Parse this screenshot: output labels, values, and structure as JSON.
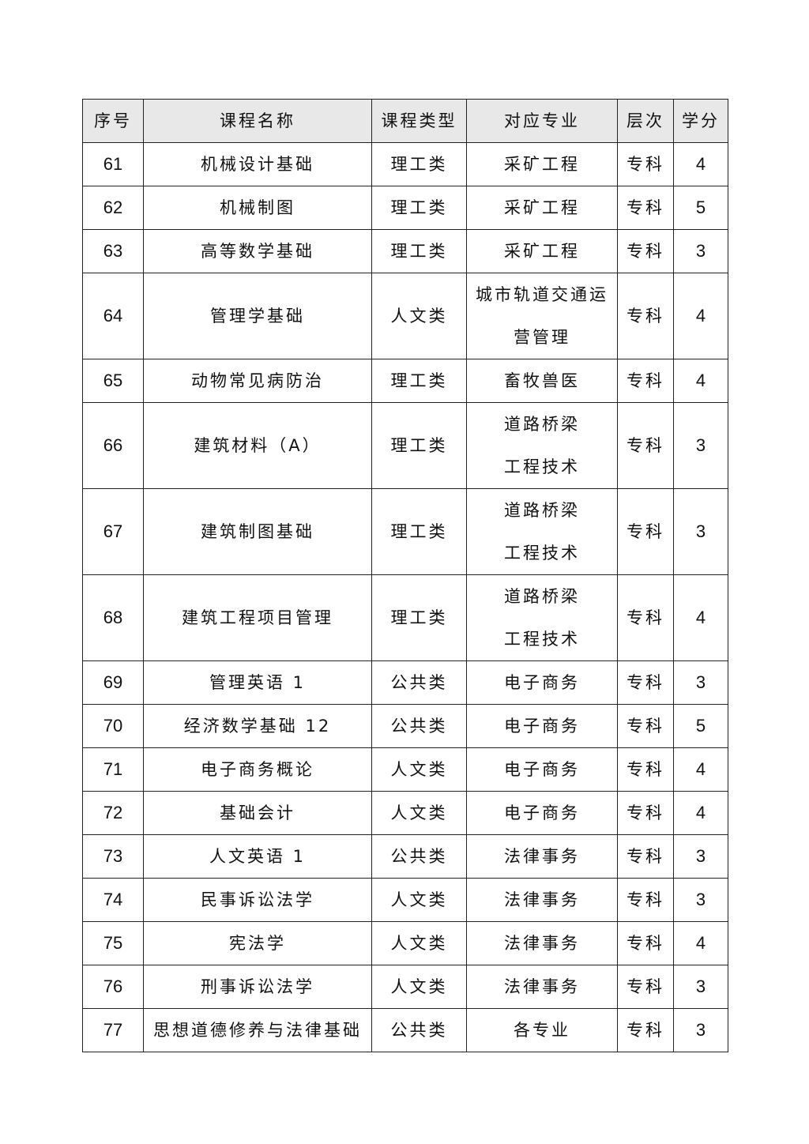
{
  "headers": [
    "序号",
    "课程名称",
    "课程类型",
    "对应专业",
    "层次",
    "学分"
  ],
  "rows": [
    {
      "no": "61",
      "name": "机械设计基础",
      "type": "理工类",
      "major": [
        "采矿工程"
      ],
      "level": "专科",
      "credit": "4"
    },
    {
      "no": "62",
      "name": "机械制图",
      "type": "理工类",
      "major": [
        "采矿工程"
      ],
      "level": "专科",
      "credit": "5"
    },
    {
      "no": "63",
      "name": "高等数学基础",
      "type": "理工类",
      "major": [
        "采矿工程"
      ],
      "level": "专科",
      "credit": "3"
    },
    {
      "no": "64",
      "name": "管理学基础",
      "type": "人文类",
      "major": [
        "城市轨道交通运",
        "营管理"
      ],
      "level": "专科",
      "credit": "4"
    },
    {
      "no": "65",
      "name": "动物常见病防治",
      "type": "理工类",
      "major": [
        "畜牧兽医"
      ],
      "level": "专科",
      "credit": "4"
    },
    {
      "no": "66",
      "name": "建筑材料（A）",
      "type": "理工类",
      "major": [
        "道路桥梁",
        "工程技术"
      ],
      "level": "专科",
      "credit": "3"
    },
    {
      "no": "67",
      "name": "建筑制图基础",
      "type": "理工类",
      "major": [
        "道路桥梁",
        "工程技术"
      ],
      "level": "专科",
      "credit": "3"
    },
    {
      "no": "68",
      "name": "建筑工程项目管理",
      "type": "理工类",
      "major": [
        "道路桥梁",
        "工程技术"
      ],
      "level": "专科",
      "credit": "4"
    },
    {
      "no": "69",
      "name": "管理英语 1",
      "type": "公共类",
      "major": [
        "电子商务"
      ],
      "level": "专科",
      "credit": "3"
    },
    {
      "no": "70",
      "name": "经济数学基础 12",
      "type": "公共类",
      "major": [
        "电子商务"
      ],
      "level": "专科",
      "credit": "5"
    },
    {
      "no": "71",
      "name": "电子商务概论",
      "type": "人文类",
      "major": [
        "电子商务"
      ],
      "level": "专科",
      "credit": "4"
    },
    {
      "no": "72",
      "name": "基础会计",
      "type": "人文类",
      "major": [
        "电子商务"
      ],
      "level": "专科",
      "credit": "4"
    },
    {
      "no": "73",
      "name": "人文英语 1",
      "type": "公共类",
      "major": [
        "法律事务"
      ],
      "level": "专科",
      "credit": "3"
    },
    {
      "no": "74",
      "name": "民事诉讼法学",
      "type": "人文类",
      "major": [
        "法律事务"
      ],
      "level": "专科",
      "credit": "3"
    },
    {
      "no": "75",
      "name": "宪法学",
      "type": "人文类",
      "major": [
        "法律事务"
      ],
      "level": "专科",
      "credit": "4"
    },
    {
      "no": "76",
      "name": "刑事诉讼法学",
      "type": "人文类",
      "major": [
        "法律事务"
      ],
      "level": "专科",
      "credit": "3"
    },
    {
      "no": "77",
      "name": "思想道德修养与法律基础",
      "type": "公共类",
      "major": [
        "各专业"
      ],
      "level": "专科",
      "credit": "3"
    }
  ]
}
